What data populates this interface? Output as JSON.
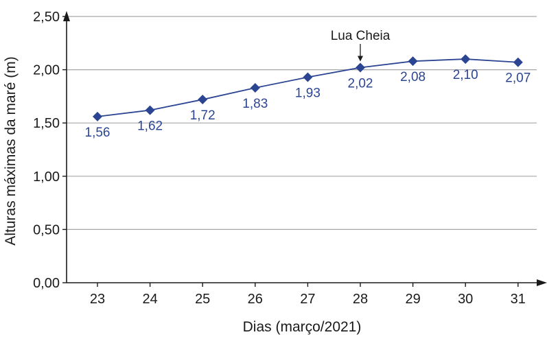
{
  "chart_data": {
    "type": "line",
    "xlabel": "Dias (março/2021)",
    "ylabel": "Alturas máximas da maré (m)",
    "categories": [
      "23",
      "24",
      "25",
      "26",
      "27",
      "28",
      "29",
      "30",
      "31"
    ],
    "series": [
      {
        "values": [
          1.56,
          1.62,
          1.72,
          1.83,
          1.93,
          2.02,
          2.08,
          2.1,
          2.07
        ],
        "value_labels": [
          "1,56",
          "1,62",
          "1,72",
          "1,83",
          "1,93",
          "2,02",
          "2,08",
          "2,10",
          "2,07"
        ],
        "color": "#2b4593"
      }
    ],
    "y_ticks": [
      0,
      0.5,
      1,
      1.5,
      2,
      2.5
    ],
    "y_tick_labels": [
      "0,00",
      "0,50",
      "1,00",
      "1,50",
      "2,00",
      "2,50"
    ],
    "ylim": [
      0,
      2.5
    ],
    "grid": "horizontal",
    "annotation": {
      "text": "Lua Cheia",
      "category": "28"
    },
    "colors": {
      "series": "#2b4593",
      "grid": "#a6a6a6",
      "axis": "#1a1a1a"
    }
  }
}
